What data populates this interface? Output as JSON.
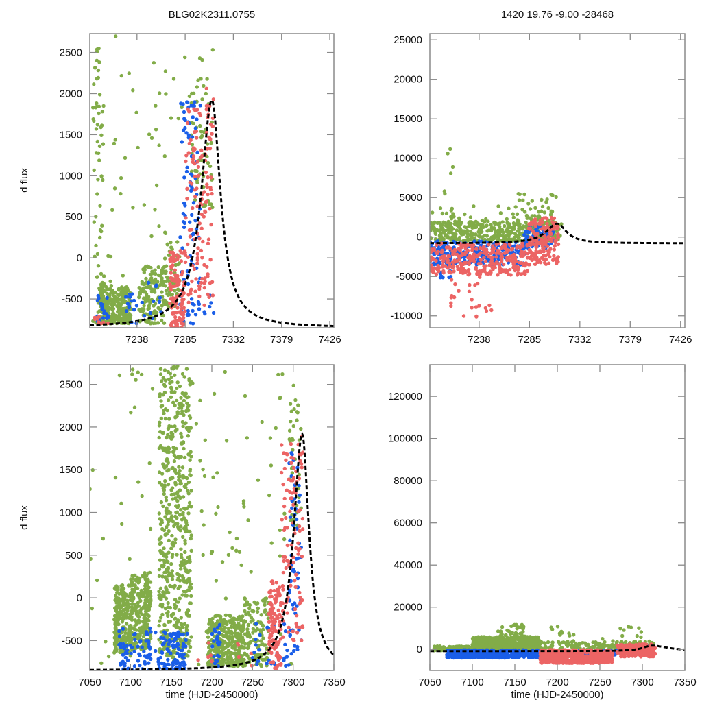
{
  "figure": {
    "title_left": "BLG02K2311.0755",
    "title_right": "1420  19.76  -9.00  -28468"
  },
  "colors": {
    "green": "#82ac48",
    "blue": "#1a5ee8",
    "red": "#ec6464",
    "model": "#000000",
    "frame": "#8a8a8a"
  },
  "chart_data": [
    {
      "id": "top-left",
      "type": "scatter",
      "title": "BLG02K2311.0755",
      "xlabel": "",
      "ylabel": "d flux",
      "xlim": [
        7192,
        7430
      ],
      "ylim": [
        -850,
        2730
      ],
      "xticks": [
        7238,
        7285,
        7332,
        7379,
        7426
      ],
      "yticks": [
        -500,
        0,
        500,
        1000,
        1500,
        2000,
        2500
      ],
      "grid": false,
      "legend": "none",
      "model": {
        "t0": 7311,
        "peak": 1920,
        "base": -850,
        "tE_rise": 16,
        "tE_fall": 13
      },
      "series": [
        {
          "name": "green",
          "clusters": [
            [
              7195,
              7205,
              -800,
              2700,
              60
            ],
            [
              7200,
              7215,
              -800,
              -300,
              120
            ],
            [
              7215,
              7232,
              -800,
              -350,
              150
            ],
            [
              7240,
              7265,
              -800,
              -100,
              140
            ],
            [
              7265,
              7280,
              -600,
              200,
              60
            ],
            [
              7290,
              7312,
              600,
              2600,
              60
            ],
            [
              7195,
              7290,
              -300,
              2700,
              50
            ]
          ]
        },
        {
          "name": "blue",
          "clusters": [
            [
              7198,
              7210,
              -800,
              -450,
              25
            ],
            [
              7225,
              7265,
              -800,
              -300,
              25
            ],
            [
              7280,
              7300,
              -800,
              1900,
              90
            ],
            [
              7300,
              7315,
              -700,
              -400,
              6
            ]
          ]
        },
        {
          "name": "red",
          "clusters": [
            [
              7195,
              7210,
              -820,
              -700,
              10
            ],
            [
              7270,
              7285,
              -850,
              100,
              120
            ],
            [
              7285,
              7312,
              -600,
              1900,
              130
            ],
            [
              7305,
              7315,
              1700,
              2150,
              6
            ]
          ]
        }
      ]
    },
    {
      "id": "top-right",
      "type": "scatter",
      "title": "1420  19.76  -9.00  -28468",
      "xlabel": "",
      "ylabel": "",
      "xlim": [
        7192,
        7430
      ],
      "ylim": [
        -11500,
        25800
      ],
      "xticks": [
        7238,
        7285,
        7332,
        7379,
        7426
      ],
      "yticks": [
        -10000,
        -5000,
        0,
        5000,
        10000,
        15000,
        20000,
        25000
      ],
      "grid": false,
      "legend": "none",
      "model": {
        "t0": 7311,
        "peak": 1700,
        "base": -800,
        "tE_rise": 16,
        "tE_fall": 13
      },
      "series": [
        {
          "name": "green",
          "clusters": [
            [
              7192,
              7315,
              -500,
              2000,
              400
            ],
            [
              7205,
              7215,
              3000,
              12600,
              8
            ],
            [
              7270,
              7310,
              1500,
              5800,
              40
            ],
            [
              7192,
              7310,
              2000,
              4000,
              30
            ]
          ]
        },
        {
          "name": "blue",
          "clusters": [
            [
              7192,
              7280,
              -3500,
              -500,
              260
            ],
            [
              7280,
              7308,
              -1500,
              1500,
              60
            ],
            [
              7200,
              7215,
              -5500,
              -3000,
              12
            ]
          ]
        },
        {
          "name": "red",
          "clusters": [
            [
              7192,
              7285,
              -4800,
              -800,
              320
            ],
            [
              7283,
              7312,
              -3500,
              2500,
              160
            ],
            [
              7210,
              7250,
              -10200,
              -5000,
              25
            ]
          ]
        }
      ]
    },
    {
      "id": "bottom-left",
      "type": "scatter",
      "title": "",
      "xlabel": "time (HJD-2450000)",
      "ylabel": "d flux",
      "xlim": [
        7050,
        7350
      ],
      "ylim": [
        -850,
        2730
      ],
      "xticks": [
        7050,
        7100,
        7150,
        7200,
        7250,
        7300,
        7350
      ],
      "yticks": [
        -500,
        0,
        500,
        1000,
        1500,
        2000,
        2500
      ],
      "grid": false,
      "legend": "none",
      "model": {
        "t0": 7311,
        "peak": 1920,
        "base": -850,
        "tE_rise": 16,
        "tE_fall": 13
      },
      "series": [
        {
          "name": "green",
          "clusters": [
            [
              7080,
              7100,
              -650,
              150,
              220
            ],
            [
              7100,
              7125,
              -600,
              300,
              260
            ],
            [
              7135,
              7175,
              -700,
              2730,
              560
            ],
            [
              7195,
              7215,
              -800,
              -200,
              160
            ],
            [
              7215,
              7240,
              -800,
              -200,
              200
            ],
            [
              7240,
              7270,
              -800,
              0,
              120
            ],
            [
              7050,
              7300,
              -850,
              2700,
              120
            ],
            [
              7295,
              7310,
              800,
              2600,
              40
            ]
          ]
        },
        {
          "name": "blue",
          "clusters": [
            [
              7085,
              7125,
              -850,
              -350,
              70
            ],
            [
              7130,
              7170,
              -850,
              -400,
              90
            ],
            [
              7200,
              7210,
              -800,
              -300,
              25
            ],
            [
              7295,
              7310,
              -700,
              1900,
              60
            ],
            [
              7250,
              7300,
              -800,
              -300,
              30
            ]
          ]
        },
        {
          "name": "red",
          "clusters": [
            [
              7270,
              7285,
              -850,
              200,
              120
            ],
            [
              7285,
              7312,
              -500,
              1900,
              110
            ],
            [
              7180,
              7250,
              -800,
              -500,
              10
            ]
          ]
        }
      ]
    },
    {
      "id": "bottom-right",
      "type": "scatter",
      "title": "",
      "xlabel": "time (HJD-2450000)",
      "ylabel": "",
      "xlim": [
        7050,
        7350
      ],
      "ylim": [
        -10000,
        135000
      ],
      "xticks": [
        7050,
        7100,
        7150,
        7200,
        7250,
        7300,
        7350
      ],
      "yticks": [
        0,
        20000,
        40000,
        60000,
        80000,
        100000,
        120000
      ],
      "grid": false,
      "legend": "none",
      "model": {
        "t0": 7311,
        "peak": 1800,
        "base": -800,
        "tE_rise": 16,
        "tE_fall": 30
      },
      "series": [
        {
          "name": "green",
          "clusters": [
            [
              7055,
              7100,
              -500,
              1500,
              150
            ],
            [
              7100,
              7180,
              0,
              6000,
              700
            ],
            [
              7180,
              7315,
              0,
              4000,
              150
            ],
            [
              7130,
              7170,
              6000,
              12000,
              40
            ],
            [
              7190,
              7300,
              5000,
              11000,
              20
            ]
          ]
        },
        {
          "name": "blue",
          "clusters": [
            [
              7070,
              7180,
              -4000,
              -300,
              500
            ],
            [
              7225,
              7270,
              -3000,
              -300,
              120
            ],
            [
              7290,
              7310,
              -1000,
              1500,
              40
            ]
          ]
        },
        {
          "name": "red",
          "clusters": [
            [
              7180,
              7265,
              -6500,
              -200,
              550
            ],
            [
              7270,
              7315,
              -3500,
              2500,
              220
            ]
          ]
        }
      ]
    }
  ]
}
